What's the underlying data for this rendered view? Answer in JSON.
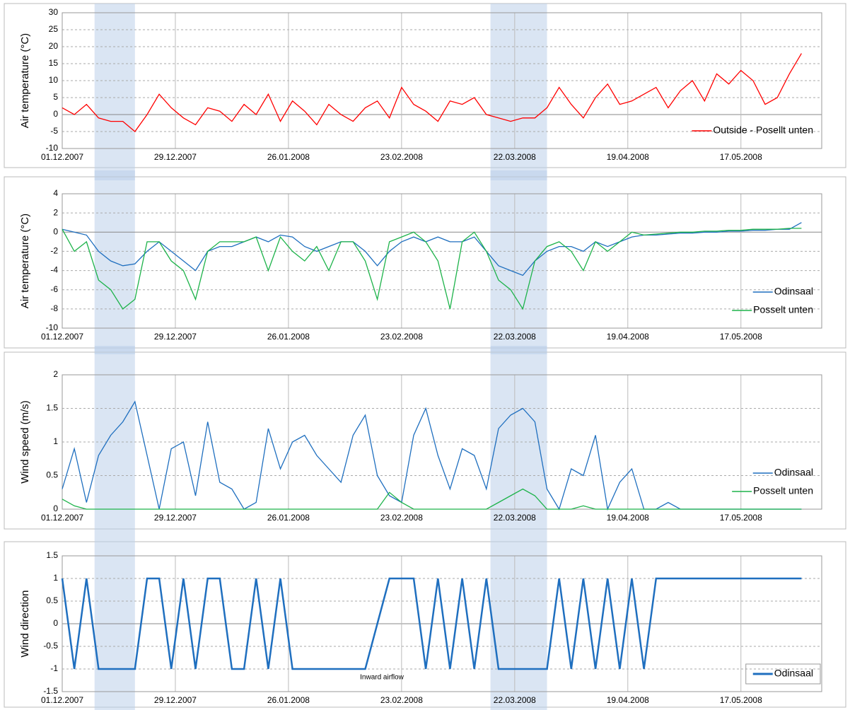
{
  "chart_data": [
    {
      "type": "line",
      "ylabel": "Air temperature (°C)",
      "legend": "lower right",
      "ylim": [
        -10,
        30
      ],
      "yticks": [
        -10,
        -5,
        0,
        5,
        10,
        15,
        20,
        25,
        30
      ],
      "xlim": [
        "01.12.2007",
        "06.06.2008"
      ],
      "xticks": [
        "01.12.2007",
        "29.12.2007",
        "26.01.2008",
        "23.02.2008",
        "22.03.2008",
        "19.04.2008",
        "17.05.2008"
      ],
      "shaded_ranges": [
        [
          "09.12.2007",
          "19.12.2007"
        ],
        [
          "16.03.2008",
          "30.03.2008"
        ]
      ],
      "x": [
        "01.12.2007",
        "04.12.2007",
        "07.12.2007",
        "10.12.2007",
        "13.12.2007",
        "16.12.2007",
        "19.12.2007",
        "22.12.2007",
        "25.12.2007",
        "28.12.2007",
        "31.12.2007",
        "03.01.2008",
        "06.01.2008",
        "09.01.2008",
        "12.01.2008",
        "15.01.2008",
        "18.01.2008",
        "21.01.2008",
        "24.01.2008",
        "27.01.2008",
        "30.01.2008",
        "02.02.2008",
        "05.02.2008",
        "08.02.2008",
        "11.02.2008",
        "14.02.2008",
        "17.02.2008",
        "20.02.2008",
        "23.02.2008",
        "26.02.2008",
        "29.02.2008",
        "03.03.2008",
        "06.03.2008",
        "09.03.2008",
        "12.03.2008",
        "15.03.2008",
        "18.03.2008",
        "21.03.2008",
        "24.03.2008",
        "27.03.2008",
        "30.03.2008",
        "02.04.2008",
        "05.04.2008",
        "08.04.2008",
        "11.04.2008",
        "14.04.2008",
        "17.04.2008",
        "20.04.2008",
        "23.04.2008",
        "26.04.2008",
        "29.04.2008",
        "02.05.2008",
        "05.05.2008",
        "08.05.2008",
        "11.05.2008",
        "14.05.2008",
        "17.05.2008",
        "20.05.2008",
        "23.05.2008",
        "26.05.2008",
        "29.05.2008",
        "01.06.2008"
      ],
      "series": [
        {
          "name": "Outside - Posellt unten",
          "color": "#ff0000",
          "values": [
            2,
            0,
            3,
            -1,
            -2,
            -2,
            -5,
            0,
            6,
            2,
            -1,
            -3,
            2,
            1,
            -2,
            3,
            0,
            6,
            -2,
            4,
            1,
            -3,
            3,
            0,
            -2,
            2,
            4,
            -1,
            8,
            3,
            1,
            -2,
            4,
            3,
            5,
            0,
            -1,
            -2,
            -1,
            -1,
            2,
            8,
            3,
            -1,
            5,
            9,
            3,
            4,
            6,
            8,
            2,
            7,
            10,
            4,
            12,
            9,
            13,
            10,
            3,
            5,
            12,
            18
          ]
        }
      ]
    },
    {
      "type": "line",
      "ylabel": "Air temperature (°C)",
      "legend": "lower right",
      "ylim": [
        -10,
        4
      ],
      "yticks": [
        -10,
        -8,
        -6,
        -4,
        -2,
        0,
        2,
        4
      ],
      "xlim": [
        "01.12.2007",
        "06.06.2008"
      ],
      "xticks": [
        "01.12.2007",
        "29.12.2007",
        "26.01.2008",
        "23.02.2008",
        "22.03.2008",
        "19.04.2008",
        "17.05.2008"
      ],
      "shaded_ranges": [
        [
          "09.12.2007",
          "19.12.2007"
        ],
        [
          "16.03.2008",
          "30.03.2008"
        ]
      ],
      "x": [
        "01.12.2007",
        "04.12.2007",
        "07.12.2007",
        "10.12.2007",
        "13.12.2007",
        "16.12.2007",
        "19.12.2007",
        "22.12.2007",
        "25.12.2007",
        "28.12.2007",
        "31.12.2007",
        "03.01.2008",
        "06.01.2008",
        "09.01.2008",
        "12.01.2008",
        "15.01.2008",
        "18.01.2008",
        "21.01.2008",
        "24.01.2008",
        "27.01.2008",
        "30.01.2008",
        "02.02.2008",
        "05.02.2008",
        "08.02.2008",
        "11.02.2008",
        "14.02.2008",
        "17.02.2008",
        "20.02.2008",
        "23.02.2008",
        "26.02.2008",
        "29.02.2008",
        "03.03.2008",
        "06.03.2008",
        "09.03.2008",
        "12.03.2008",
        "15.03.2008",
        "18.03.2008",
        "21.03.2008",
        "24.03.2008",
        "27.03.2008",
        "30.03.2008",
        "02.04.2008",
        "05.04.2008",
        "08.04.2008",
        "11.04.2008",
        "14.04.2008",
        "17.04.2008",
        "20.04.2008",
        "23.04.2008",
        "26.04.2008",
        "29.04.2008",
        "02.05.2008",
        "05.05.2008",
        "08.05.2008",
        "11.05.2008",
        "14.05.2008",
        "17.05.2008",
        "20.05.2008",
        "23.05.2008",
        "26.05.2008",
        "29.05.2008",
        "01.06.2008"
      ],
      "series": [
        {
          "name": "Odinsaal",
          "color": "#1f6fbf",
          "values": [
            0.3,
            0,
            -0.3,
            -2,
            -3,
            -3.5,
            -3.3,
            -2,
            -1,
            -2,
            -3,
            -4,
            -2,
            -1.5,
            -1.5,
            -1,
            -0.5,
            -1,
            -0.3,
            -0.5,
            -1.5,
            -2,
            -1.5,
            -1,
            -1,
            -2,
            -3.5,
            -2,
            -1,
            -0.5,
            -1,
            -0.5,
            -1,
            -1,
            -0.5,
            -2,
            -3.5,
            -4,
            -4.5,
            -3,
            -2,
            -1.5,
            -1.5,
            -2,
            -1,
            -1.5,
            -1,
            -0.5,
            -0.3,
            -0.3,
            -0.2,
            -0.1,
            -0.1,
            0,
            0,
            0.1,
            0.1,
            0.2,
            0.2,
            0.3,
            0.3,
            1
          ]
        },
        {
          "name": "Posselt unten",
          "color": "#1db34a",
          "values": [
            0.3,
            -2,
            -1,
            -5,
            -6,
            -8,
            -7,
            -1,
            -1,
            -3,
            -4,
            -7,
            -2,
            -1,
            -1,
            -1,
            -0.5,
            -4,
            -0.5,
            -2,
            -3,
            -1.5,
            -4,
            -1,
            -1,
            -3,
            -7,
            -1,
            -0.5,
            0,
            -1,
            -3,
            -8,
            -1,
            0,
            -2,
            -5,
            -6,
            -8,
            -3,
            -1.5,
            -1,
            -2,
            -4,
            -1,
            -2,
            -1,
            0,
            -0.3,
            -0.2,
            -0.1,
            0,
            0,
            0.1,
            0.1,
            0.2,
            0.2,
            0.3,
            0.3,
            0.3,
            0.4,
            0.4
          ]
        }
      ]
    },
    {
      "type": "line",
      "ylabel": "Wind speed (m/s)",
      "legend": "lower right",
      "ylim": [
        0,
        2
      ],
      "yticks": [
        0,
        0.5,
        1,
        1.5,
        2
      ],
      "xlim": [
        "01.12.2007",
        "06.06.2008"
      ],
      "xticks": [
        "01.12.2007",
        "29.12.2007",
        "26.01.2008",
        "23.02.2008",
        "22.03.2008",
        "19.04.2008",
        "17.05.2008"
      ],
      "shaded_ranges": [
        [
          "09.12.2007",
          "19.12.2007"
        ],
        [
          "16.03.2008",
          "30.03.2008"
        ]
      ],
      "x": [
        "01.12.2007",
        "04.12.2007",
        "07.12.2007",
        "10.12.2007",
        "13.12.2007",
        "16.12.2007",
        "19.12.2007",
        "22.12.2007",
        "25.12.2007",
        "28.12.2007",
        "31.12.2007",
        "03.01.2008",
        "06.01.2008",
        "09.01.2008",
        "12.01.2008",
        "15.01.2008",
        "18.01.2008",
        "21.01.2008",
        "24.01.2008",
        "27.01.2008",
        "30.01.2008",
        "02.02.2008",
        "05.02.2008",
        "08.02.2008",
        "11.02.2008",
        "14.02.2008",
        "17.02.2008",
        "20.02.2008",
        "23.02.2008",
        "26.02.2008",
        "29.02.2008",
        "03.03.2008",
        "06.03.2008",
        "09.03.2008",
        "12.03.2008",
        "15.03.2008",
        "18.03.2008",
        "21.03.2008",
        "24.03.2008",
        "27.03.2008",
        "30.03.2008",
        "02.04.2008",
        "05.04.2008",
        "08.04.2008",
        "11.04.2008",
        "14.04.2008",
        "17.04.2008",
        "20.04.2008",
        "23.04.2008",
        "26.04.2008",
        "29.04.2008",
        "02.05.2008",
        "05.05.2008",
        "08.05.2008",
        "11.05.2008",
        "14.05.2008",
        "17.05.2008",
        "20.05.2008",
        "23.05.2008",
        "26.05.2008",
        "29.05.2008",
        "01.06.2008"
      ],
      "series": [
        {
          "name": "Odinsaal",
          "color": "#1f6fbf",
          "values": [
            0.3,
            0.9,
            0.1,
            0.8,
            1.1,
            1.3,
            1.6,
            0.8,
            0,
            0.9,
            1,
            0.2,
            1.3,
            0.4,
            0.3,
            0,
            0.1,
            1.2,
            0.6,
            1,
            1.1,
            0.8,
            0.6,
            0.4,
            1.1,
            1.4,
            0.5,
            0.2,
            0.1,
            1.1,
            1.5,
            0.8,
            0.3,
            0.9,
            0.8,
            0.3,
            1.2,
            1.4,
            1.5,
            1.3,
            0.3,
            0,
            0.6,
            0.5,
            1.1,
            0,
            0.4,
            0.6,
            0,
            0,
            0.1,
            0,
            0,
            0,
            0,
            0,
            0,
            0,
            0,
            0,
            0,
            0
          ]
        },
        {
          "name": "Posselt unten",
          "color": "#1db34a",
          "values": [
            0.15,
            0.05,
            0,
            0,
            0,
            0,
            0,
            0,
            0,
            0,
            0,
            0,
            0,
            0,
            0,
            0,
            0,
            0,
            0,
            0,
            0,
            0,
            0,
            0,
            0,
            0,
            0,
            0.25,
            0.1,
            0,
            0,
            0,
            0,
            0,
            0,
            0,
            0.1,
            0.2,
            0.3,
            0.2,
            0,
            0,
            0,
            0.05,
            0,
            0,
            0,
            0,
            0,
            0,
            0,
            0,
            0,
            0,
            0,
            0,
            0,
            0,
            0,
            0,
            0,
            0
          ]
        }
      ]
    },
    {
      "type": "line",
      "ylabel": "Wind direction",
      "legend": "lower right",
      "legend_frame": true,
      "annotation": "Inward airflow",
      "ylim": [
        -1.5,
        1.5
      ],
      "yticks": [
        -1.5,
        -1,
        -0.5,
        0,
        0.5,
        1,
        1.5
      ],
      "xlim": [
        "01.12.2007",
        "06.06.2008"
      ],
      "xticks": [
        "01.12.2007",
        "29.12.2007",
        "26.01.2008",
        "23.02.2008",
        "22.03.2008",
        "19.04.2008",
        "17.05.2008"
      ],
      "shaded_ranges": [
        [
          "09.12.2007",
          "19.12.2007"
        ],
        [
          "16.03.2008",
          "30.03.2008"
        ]
      ],
      "x": [
        "01.12.2007",
        "04.12.2007",
        "07.12.2007",
        "10.12.2007",
        "13.12.2007",
        "16.12.2007",
        "19.12.2007",
        "22.12.2007",
        "25.12.2007",
        "28.12.2007",
        "31.12.2007",
        "03.01.2008",
        "06.01.2008",
        "09.01.2008",
        "12.01.2008",
        "15.01.2008",
        "18.01.2008",
        "21.01.2008",
        "24.01.2008",
        "27.01.2008",
        "30.01.2008",
        "02.02.2008",
        "05.02.2008",
        "08.02.2008",
        "11.02.2008",
        "14.02.2008",
        "17.02.2008",
        "20.02.2008",
        "23.02.2008",
        "26.02.2008",
        "29.02.2008",
        "03.03.2008",
        "06.03.2008",
        "09.03.2008",
        "12.03.2008",
        "15.03.2008",
        "18.03.2008",
        "21.03.2008",
        "24.03.2008",
        "27.03.2008",
        "30.03.2008",
        "02.04.2008",
        "05.04.2008",
        "08.04.2008",
        "11.04.2008",
        "14.04.2008",
        "17.04.2008",
        "20.04.2008",
        "23.04.2008",
        "26.04.2008",
        "29.04.2008",
        "02.05.2008",
        "05.05.2008",
        "08.05.2008",
        "11.05.2008",
        "14.05.2008",
        "17.05.2008",
        "20.05.2008",
        "23.05.2008",
        "26.05.2008",
        "29.05.2008",
        "01.06.2008"
      ],
      "series": [
        {
          "name": "Odinsaal",
          "color": "#1f6fbf",
          "values": [
            1,
            -1,
            1,
            -1,
            -1,
            -1,
            -1,
            1,
            1,
            -1,
            1,
            -1,
            1,
            1,
            -1,
            -1,
            1,
            -1,
            1,
            -1,
            -1,
            -1,
            -1,
            -1,
            -1,
            -1,
            0,
            1,
            1,
            1,
            -1,
            1,
            -1,
            1,
            -1,
            1,
            -1,
            -1,
            -1,
            -1,
            -1,
            1,
            -1,
            1,
            -1,
            1,
            -1,
            1,
            -1,
            1,
            1,
            1,
            1,
            1,
            1,
            1,
            1,
            1,
            1,
            1,
            1,
            1
          ]
        }
      ]
    }
  ]
}
